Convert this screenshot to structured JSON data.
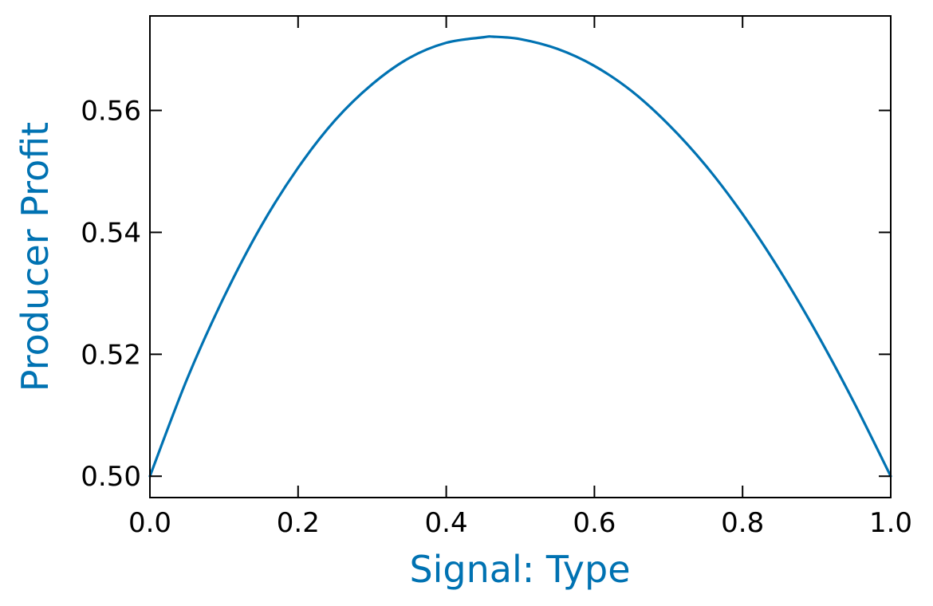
{
  "chart_data": {
    "type": "line",
    "xlabel": "Signal: Type",
    "ylabel": "Producer Profit",
    "xlim": [
      0.0,
      1.0
    ],
    "ylim": [
      0.4965,
      0.5755
    ],
    "x_ticks": [
      "0.0",
      "0.2",
      "0.4",
      "0.6",
      "0.8",
      "1.0"
    ],
    "y_ticks": [
      "0.50",
      "0.52",
      "0.54",
      "0.56"
    ],
    "grid": false,
    "ticks_direction": "in",
    "series": [
      {
        "color": "#0072b2",
        "x": [
          0.0,
          0.05,
          0.1,
          0.15,
          0.2,
          0.25,
          0.3,
          0.35,
          0.4,
          0.45,
          0.463,
          0.5,
          0.55,
          0.6,
          0.65,
          0.7,
          0.75,
          0.8,
          0.85,
          0.9,
          0.95,
          1.0
        ],
        "y": [
          0.5,
          0.5159,
          0.5294,
          0.541,
          0.5506,
          0.5584,
          0.5643,
          0.5686,
          0.5711,
          0.572,
          0.5721,
          0.5717,
          0.5701,
          0.5673,
          0.5632,
          0.5577,
          0.551,
          0.543,
          0.5338,
          0.5235,
          0.5122,
          0.5
        ]
      }
    ],
    "colors": {
      "axis_title": "#0072b2",
      "line": "#0072b2",
      "frame": "#000000"
    }
  }
}
